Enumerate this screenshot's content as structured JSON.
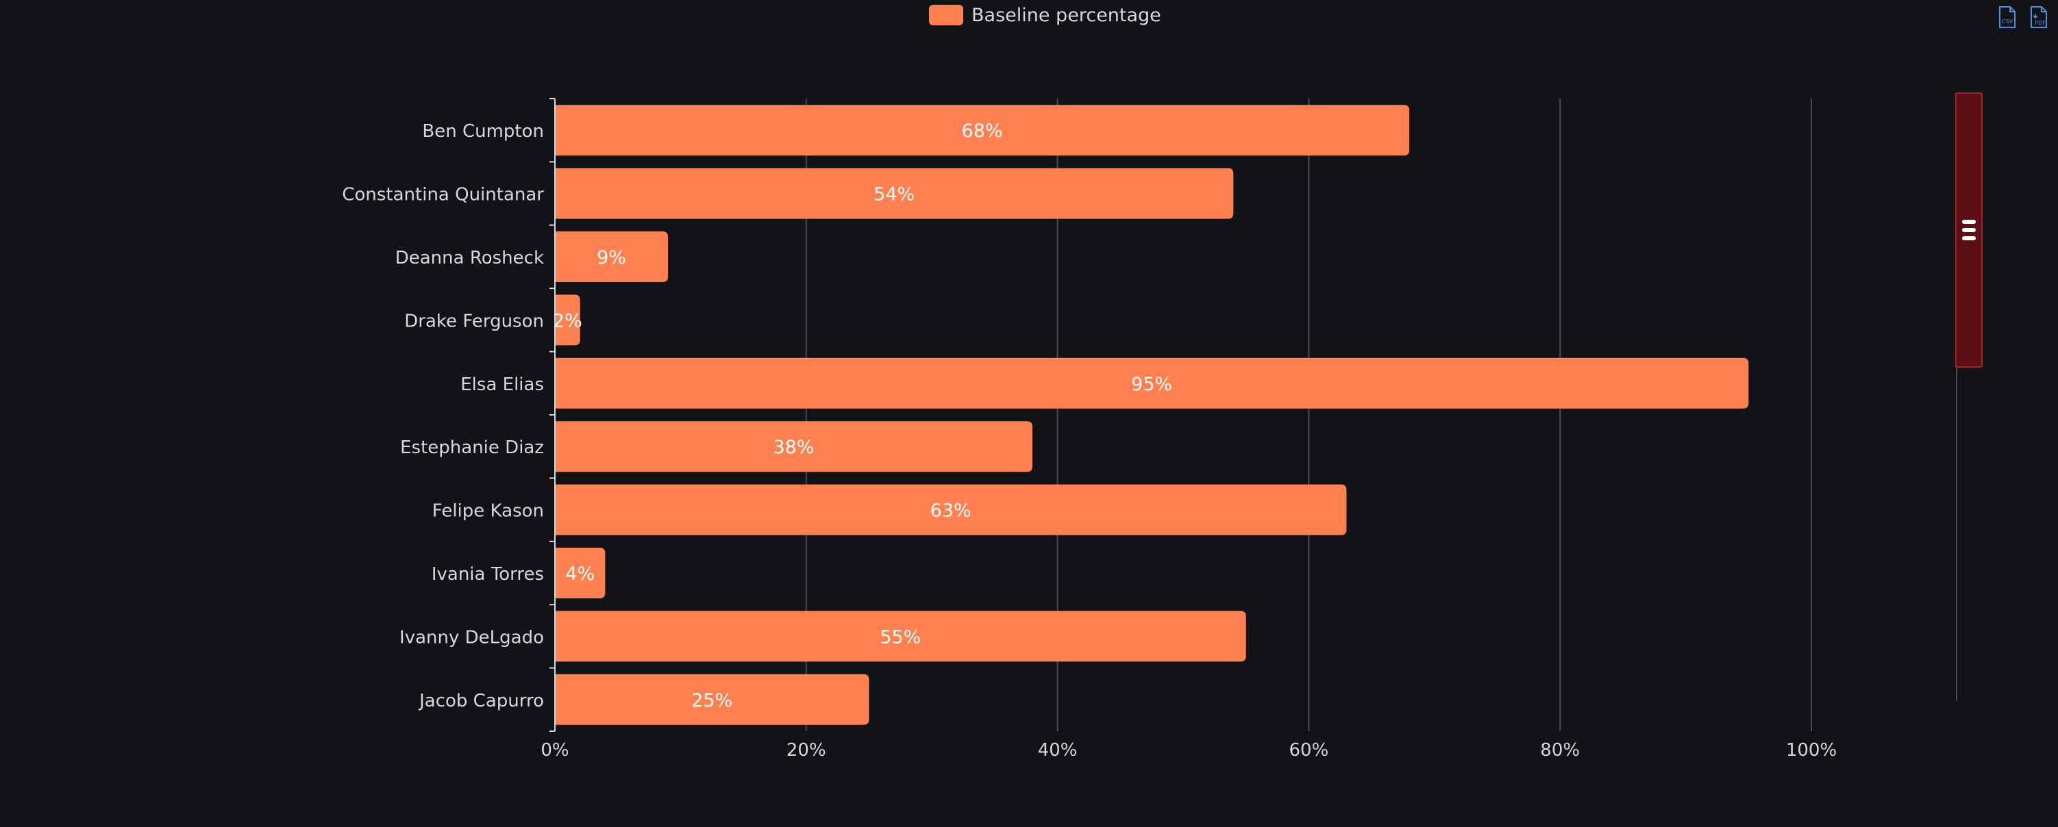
{
  "legend": {
    "label": "Baseline percentage"
  },
  "colors": {
    "bar": "#ff8050",
    "background": "#121317",
    "grid": "#4a4c55",
    "axis_text": "#d6d7db",
    "bar_label": "#ffffff",
    "scroll_thumb": "#5c0f14",
    "scroll_thumb_border": "#a3232c"
  },
  "toolbar": {
    "icons": [
      "export-csv-icon",
      "export-pdf-icon"
    ],
    "csv_label": "CSV",
    "pdf_label": "PDF"
  },
  "chart_data": {
    "type": "bar",
    "orientation": "horizontal",
    "categories": [
      "Ben Cumpton",
      "Constantina Quintanar",
      "Deanna Rosheck",
      "Drake Ferguson",
      "Elsa Elias",
      "Estephanie Diaz",
      "Felipe Kason",
      "Ivania Torres",
      "Ivanny DeLgado",
      "Jacob Capurro"
    ],
    "series": [
      {
        "name": "Baseline percentage",
        "values": [
          68,
          54,
          9,
          2,
          95,
          38,
          63,
          4,
          55,
          25
        ]
      }
    ],
    "data_labels": [
      "68%",
      "54%",
      "9%",
      "2%",
      "95%",
      "38%",
      "63%",
      "4%",
      "55%",
      "25%"
    ],
    "x_ticks": [
      "0%",
      "20%",
      "40%",
      "60%",
      "80%",
      "100%"
    ],
    "xlim": [
      0,
      100
    ],
    "grid": true,
    "legend_position": "top-center",
    "scrollbar": "vertical-right"
  }
}
